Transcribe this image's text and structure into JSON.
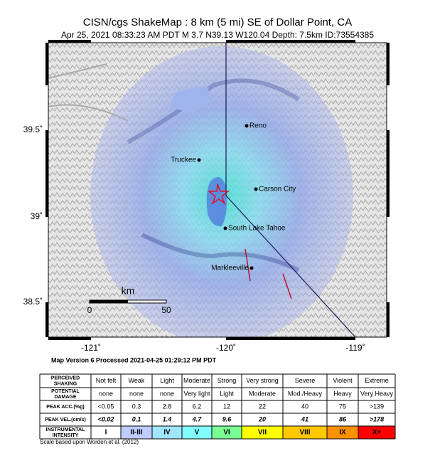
{
  "header": {
    "title": "CISN/cgs ShakeMap : 8 km (5 mi) SE of Dollar Point, CA",
    "subtitle": "Apr 25, 2021 08:33:23 AM PDT   M 3.7   N39.13 W120.04   Depth: 7.5km   ID:73554385"
  },
  "map": {
    "lon_labels": [
      "-121˚",
      "-120˚",
      "-119˚"
    ],
    "lat_labels": [
      "39.5˚",
      "39˚",
      "38.5˚"
    ],
    "cities": [
      "Reno",
      "Truckee",
      "Carson City",
      "South Lake Tahoe",
      "Markleeville"
    ],
    "scale": {
      "unit": "km",
      "start": "0",
      "end": "50"
    }
  },
  "processed": "Map Version 6 Processed 2021-04-25 01:29:12 PM PDT",
  "legend_table": {
    "rows": [
      {
        "label": [
          "PERCEIVED",
          "SHAKING"
        ],
        "cells": [
          "Not felt",
          "Weak",
          "Light",
          "Moderate",
          "Strong",
          "Very strong",
          "Severe",
          "Violent",
          "Extreme"
        ]
      },
      {
        "label": [
          "POTENTIAL",
          "DAMAGE"
        ],
        "cells": [
          "none",
          "none",
          "none",
          "Very light",
          "Light",
          "Moderate",
          "Mod./Heavy",
          "Heavy",
          "Very Heavy"
        ]
      },
      {
        "label": [
          "PEAK ACC.(%g)"
        ],
        "cells": [
          "<0.05",
          "0.3",
          "2.8",
          "6.2",
          "12",
          "22",
          "40",
          "75",
          ">139"
        ]
      },
      {
        "label": [
          "PEAK VEL.(cm/s)"
        ],
        "cells": [
          "<0.02",
          "0.1",
          "1.4",
          "4.7",
          "9.6",
          "20",
          "41",
          "86",
          ">178"
        ]
      },
      {
        "label": [
          "INSTRUMENTAL",
          "INTENSITY"
        ],
        "cells": [
          "I",
          "II-III",
          "IV",
          "V",
          "VI",
          "VII",
          "VIII",
          "IX",
          "X+"
        ]
      }
    ],
    "intensity_colors": [
      "#ffffff",
      "#bfccff",
      "#a0e6ff",
      "#80ffff",
      "#7aff93",
      "#ffff00",
      "#ffc800",
      "#ff9100",
      "#ff0000"
    ]
  },
  "footnote": "Scale based upon Worden et al. (2012)"
}
